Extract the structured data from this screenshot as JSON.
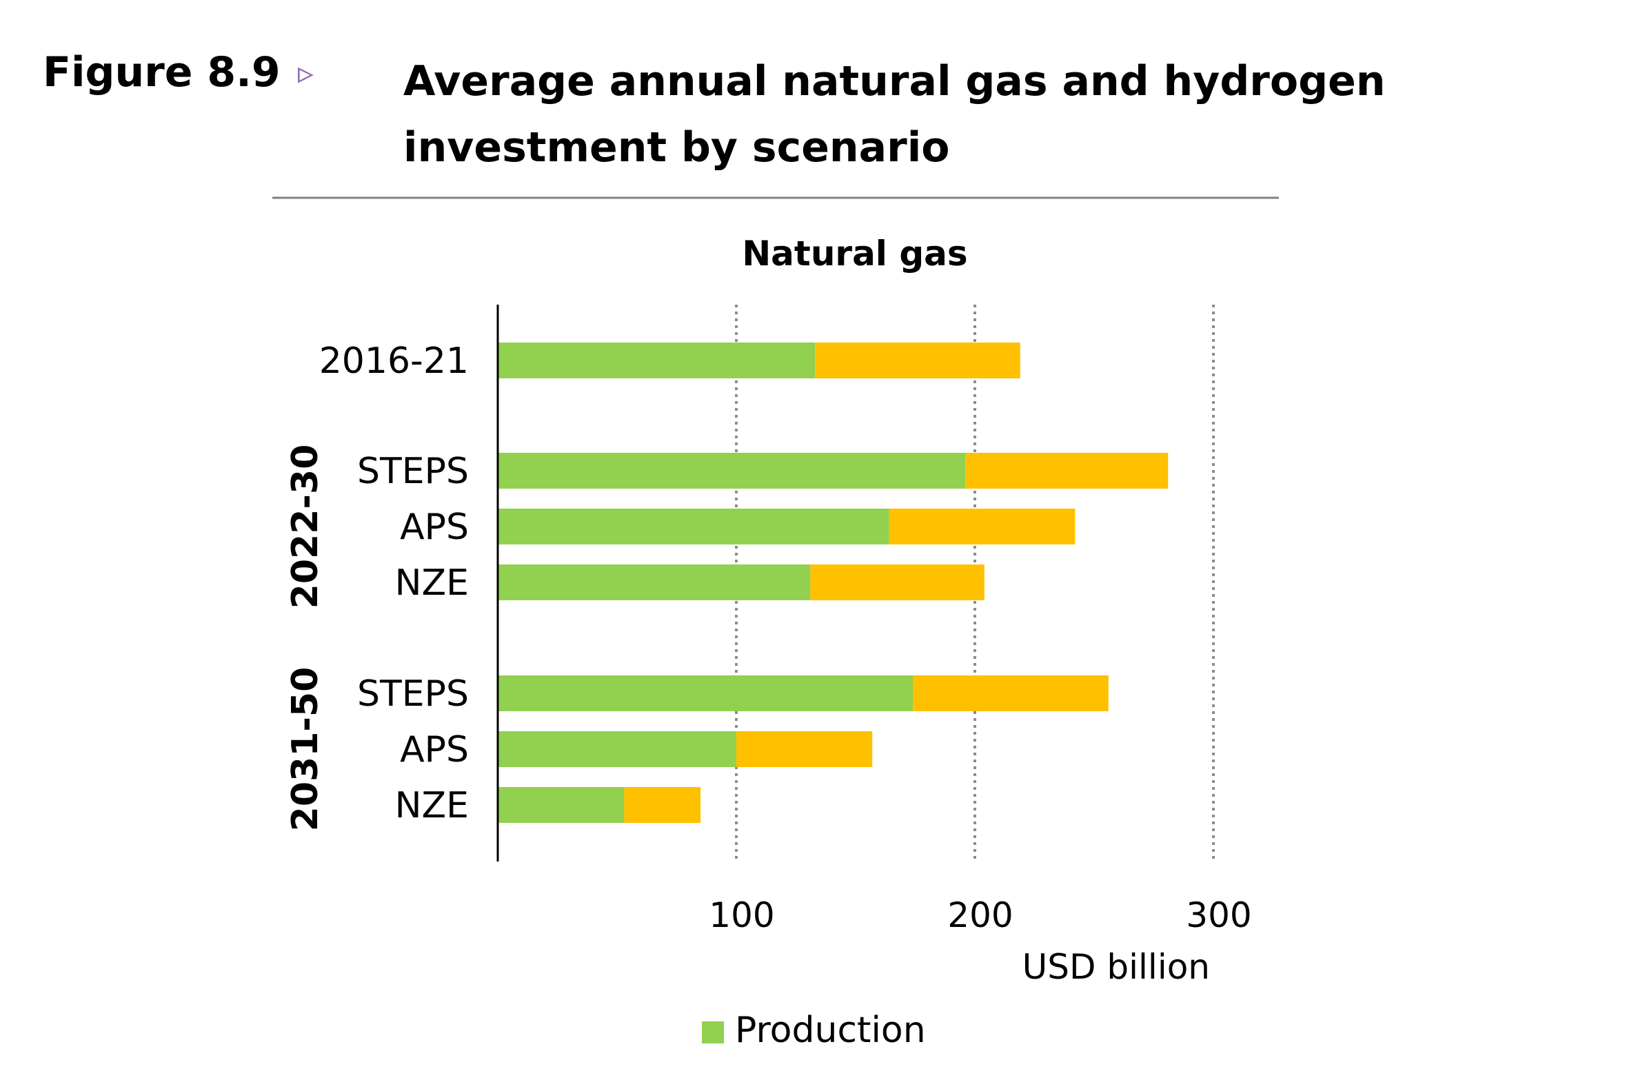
{
  "figure": {
    "label": "Figure 8.9",
    "arrow": "▹",
    "title": "Average annual natural gas and hydrogen investment by scenario"
  },
  "chart_data": {
    "type": "bar",
    "orientation": "horizontal",
    "stacked": true,
    "title": "Natural gas",
    "xlabel": "USD billion",
    "xlim": [
      0,
      300
    ],
    "xticks": [
      100,
      200,
      300
    ],
    "grid": true,
    "legend_position": "bottom",
    "categories": [
      {
        "group": "",
        "label": "2016-21"
      },
      {
        "group": "2022-30",
        "label": "STEPS"
      },
      {
        "group": "2022-30",
        "label": "APS"
      },
      {
        "group": "2022-30",
        "label": "NZE"
      },
      {
        "group": "2031-50",
        "label": "STEPS"
      },
      {
        "group": "2031-50",
        "label": "APS"
      },
      {
        "group": "2031-50",
        "label": "NZE"
      }
    ],
    "groups": [
      "2022-30",
      "2031-50"
    ],
    "series": [
      {
        "name": "Production",
        "color": "#92d050",
        "values": [
          133,
          196,
          164,
          131,
          174,
          100,
          53
        ]
      },
      {
        "name": "",
        "color": "#ffc000",
        "values": [
          86,
          85,
          78,
          73,
          82,
          57,
          32
        ]
      }
    ]
  }
}
